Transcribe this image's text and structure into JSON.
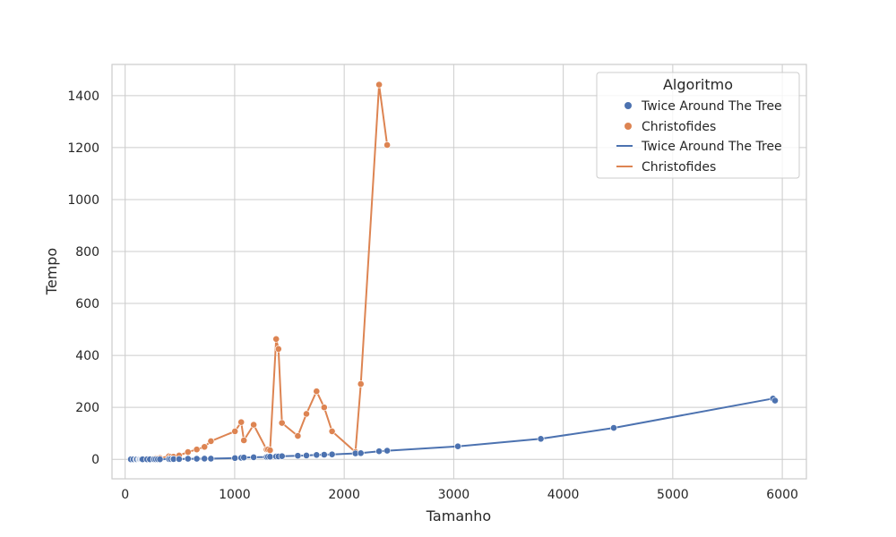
{
  "chart_data": {
    "type": "line",
    "xlabel": "Tamanho",
    "ylabel": "Tempo",
    "xlim": [
      -120,
      6220
    ],
    "ylim": [
      -75,
      1520
    ],
    "xticks": [
      0,
      1000,
      2000,
      3000,
      4000,
      5000,
      6000
    ],
    "yticks": [
      0,
      200,
      400,
      600,
      800,
      1000,
      1200,
      1400
    ],
    "grid": true,
    "legend": {
      "title": "Algoritmo",
      "placement": "top-right",
      "entries": [
        {
          "label": "Twice Around The Tree",
          "kind": "marker",
          "color": "#4c72b0"
        },
        {
          "label": "Christofides",
          "kind": "marker",
          "color": "#dd8452"
        },
        {
          "label": "Twice Around The Tree",
          "kind": "line",
          "color": "#4c72b0"
        },
        {
          "label": "Christofides",
          "kind": "line",
          "color": "#dd8452"
        }
      ]
    },
    "series": [
      {
        "name": "Twice Around The Tree",
        "color": "#4c72b0",
        "x": [
          52,
          76,
          99,
          105,
          107,
          124,
          130,
          136,
          144,
          150,
          152,
          159,
          200,
          225,
          226,
          262,
          264,
          280,
          299,
          318,
          400,
          417,
          439,
          442,
          493,
          574,
          654,
          724,
          783,
          1002,
          1060,
          1084,
          1173,
          1291,
          1304,
          1323,
          1379,
          1400,
          1432,
          1577,
          1655,
          1748,
          1817,
          1889,
          2103,
          2152,
          2319,
          2392,
          3038,
          3795,
          4461,
          5915,
          5934
        ],
        "y": [
          0,
          0,
          0,
          0,
          0,
          0,
          0,
          0,
          0,
          0,
          0,
          0,
          0,
          0,
          0,
          0,
          0,
          0,
          0,
          0,
          1,
          1,
          1,
          1,
          1,
          2,
          2,
          3,
          3,
          5,
          6,
          7,
          8,
          9,
          10,
          10,
          11,
          11,
          12,
          14,
          15,
          17,
          18,
          19,
          23,
          24,
          31,
          33,
          50,
          79,
          121,
          234,
          226
        ]
      },
      {
        "name": "Christofides",
        "color": "#dd8452",
        "x": [
          52,
          76,
          99,
          105,
          107,
          124,
          130,
          136,
          144,
          150,
          152,
          159,
          200,
          225,
          226,
          262,
          264,
          280,
          299,
          318,
          400,
          417,
          439,
          442,
          493,
          574,
          654,
          724,
          783,
          1002,
          1060,
          1084,
          1173,
          1291,
          1304,
          1323,
          1379,
          1400,
          1432,
          1577,
          1655,
          1748,
          1817,
          1889,
          2103,
          2152,
          2319,
          2392
        ],
        "y": [
          0,
          0,
          0,
          0,
          0,
          0,
          0,
          0,
          1,
          1,
          1,
          1,
          2,
          2,
          2,
          3,
          3,
          4,
          4,
          5,
          12,
          10,
          8,
          10,
          15,
          28,
          38,
          48,
          70,
          108,
          143,
          73,
          133,
          38,
          38,
          35,
          463,
          425,
          140,
          90,
          175,
          262,
          200,
          108,
          28,
          290,
          1442,
          1210
        ]
      }
    ]
  }
}
